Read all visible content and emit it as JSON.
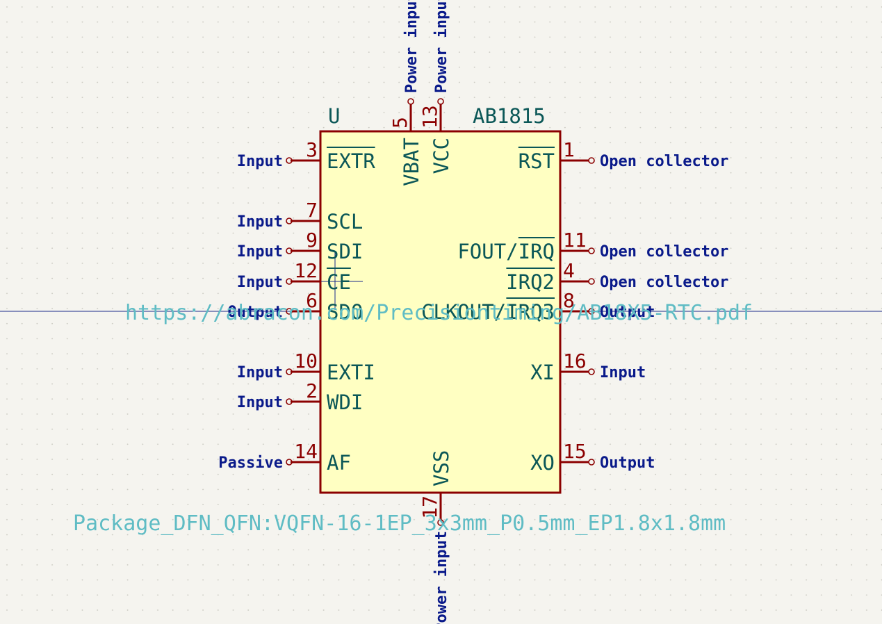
{
  "symbol": {
    "reference": "U",
    "value": "AB1815",
    "footprint": "Package_DFN_QFN:VQFN-16-1EP_3x3mm_P0.5mm_EP1.8x1.8mm",
    "datasheet": "https://abracon.com/Precisiontiming/AB18X5-RTC.pdf"
  },
  "pins": {
    "left": [
      {
        "num": "3",
        "name": "EXTR",
        "overline": "EXTR",
        "type": "Input"
      },
      {
        "num": "7",
        "name": "SCL",
        "type": "Input"
      },
      {
        "num": "9",
        "name": "SDI",
        "type": "Input"
      },
      {
        "num": "12",
        "name": "CE",
        "overline": "CE",
        "type": "Input"
      },
      {
        "num": "6",
        "name": "SDO",
        "type": "Output"
      },
      {
        "num": "10",
        "name": "EXTI",
        "type": "Input"
      },
      {
        "num": "2",
        "name": "WDI",
        "type": "Input"
      },
      {
        "num": "14",
        "name": "AF",
        "type": "Passive"
      }
    ],
    "right": [
      {
        "num": "1",
        "name": "RST",
        "overline": "RST",
        "type": "Open collector"
      },
      {
        "num": "11",
        "name": "FOUT/IRQ",
        "overline": "IRQ",
        "type": "Open collector"
      },
      {
        "num": "4",
        "name": "IRQ2",
        "overline": "IRQ2",
        "type": "Open collector"
      },
      {
        "num": "8",
        "name": "CLKOUT/IRQ3",
        "overline": "IRQ3",
        "type": "Output"
      },
      {
        "num": "16",
        "name": "XI",
        "type": "Input"
      },
      {
        "num": "15",
        "name": "XO",
        "type": "Output"
      }
    ],
    "top": [
      {
        "num": "5",
        "name": "VBAT",
        "type": "Power input"
      },
      {
        "num": "13",
        "name": "VCC",
        "type": "Power input"
      }
    ],
    "bottom": [
      {
        "num": "17",
        "name": "VSS",
        "type": "Power input"
      }
    ]
  },
  "colors": {
    "background": "#f5f4ef",
    "body_fill": "#ffffc2",
    "body_outline": "#8b0000",
    "pin": "#8b0000",
    "pin_name": "#0b5757",
    "pin_type": "#0a1a8a",
    "field": "#5fbcc4",
    "grid": "#c9c8c0",
    "crosshair": "#1a2a8a"
  }
}
